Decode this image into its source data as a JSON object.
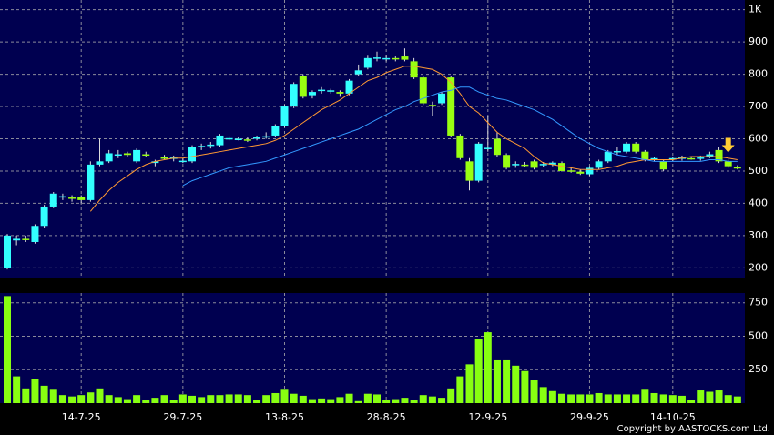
{
  "chart_data": {
    "type": "candlestick",
    "categories": [
      null,
      null,
      null,
      null,
      null,
      null,
      null,
      null,
      "14-7-25",
      null,
      null,
      null,
      null,
      null,
      null,
      null,
      null,
      null,
      null,
      "29-7-25",
      null,
      null,
      null,
      null,
      null,
      null,
      null,
      null,
      null,
      null,
      "13-8-25",
      null,
      null,
      null,
      null,
      null,
      null,
      null,
      null,
      null,
      null,
      "28-8-25",
      null,
      null,
      null,
      null,
      null,
      null,
      null,
      null,
      null,
      null,
      "12-9-25",
      null,
      null,
      null,
      null,
      null,
      null,
      null,
      null,
      null,
      null,
      "29-9-25",
      null,
      null,
      null,
      null,
      null,
      null,
      null,
      null,
      "14-10-25",
      null,
      null,
      null,
      null,
      null,
      null,
      null
    ],
    "open": [
      200,
      285,
      290,
      280,
      330,
      390,
      420,
      418,
      420,
      410,
      520,
      530,
      550,
      555,
      530,
      552,
      525,
      545,
      540,
      530,
      530,
      575,
      580,
      580,
      600,
      600,
      598,
      600,
      605,
      610,
      640,
      700,
      795,
      735,
      750,
      748,
      745,
      740,
      800,
      820,
      850,
      848,
      850,
      855,
      840,
      790,
      705,
      710,
      790,
      610,
      530,
      470,
      570,
      600,
      550,
      520,
      520,
      530,
      520,
      520,
      525,
      502,
      498,
      490,
      510,
      530,
      560,
      560,
      585,
      560,
      538,
      530,
      538,
      540,
      540,
      540,
      545,
      565,
      530,
      512
    ],
    "high": [
      305,
      300,
      300,
      335,
      395,
      435,
      430,
      425,
      425,
      530,
      600,
      565,
      565,
      560,
      570,
      560,
      535,
      550,
      548,
      540,
      580,
      585,
      590,
      615,
      608,
      605,
      605,
      610,
      620,
      645,
      705,
      775,
      800,
      750,
      760,
      755,
      750,
      785,
      830,
      860,
      870,
      860,
      855,
      880,
      850,
      795,
      715,
      745,
      795,
      615,
      540,
      590,
      670,
      620,
      555,
      530,
      528,
      535,
      528,
      530,
      530,
      510,
      505,
      515,
      535,
      565,
      575,
      590,
      590,
      565,
      545,
      535,
      545,
      548,
      545,
      548,
      560,
      575,
      535,
      518
    ],
    "low": [
      195,
      270,
      280,
      275,
      325,
      385,
      410,
      405,
      400,
      405,
      515,
      525,
      540,
      545,
      525,
      545,
      515,
      535,
      530,
      525,
      525,
      565,
      570,
      575,
      595,
      595,
      590,
      595,
      600,
      605,
      635,
      695,
      725,
      725,
      740,
      740,
      730,
      735,
      795,
      815,
      840,
      840,
      840,
      840,
      785,
      705,
      670,
      705,
      605,
      535,
      440,
      465,
      560,
      545,
      505,
      510,
      512,
      505,
      512,
      515,
      498,
      495,
      488,
      485,
      505,
      525,
      550,
      555,
      555,
      530,
      530,
      500,
      530,
      532,
      535,
      532,
      540,
      525,
      510,
      505
    ],
    "close": [
      300,
      290,
      288,
      330,
      390,
      430,
      422,
      415,
      410,
      520,
      530,
      555,
      552,
      550,
      565,
      550,
      530,
      538,
      542,
      532,
      575,
      578,
      582,
      610,
      602,
      600,
      595,
      605,
      608,
      640,
      700,
      770,
      730,
      745,
      752,
      750,
      740,
      780,
      812,
      850,
      852,
      850,
      848,
      845,
      790,
      710,
      700,
      740,
      610,
      540,
      470,
      585,
      572,
      550,
      510,
      522,
      518,
      510,
      522,
      526,
      500,
      500,
      492,
      510,
      530,
      560,
      562,
      585,
      560,
      535,
      540,
      505,
      540,
      542,
      538,
      542,
      552,
      530,
      515,
      510
    ],
    "up_color": "#33ffff",
    "down_color": "#99ff11",
    "series": [
      {
        "color": "#ff9933",
        "values": [
          null,
          null,
          null,
          null,
          null,
          null,
          null,
          null,
          null,
          375,
          410,
          440,
          465,
          485,
          505,
          520,
          530,
          535,
          540,
          540,
          545,
          550,
          555,
          560,
          565,
          570,
          575,
          580,
          585,
          595,
          610,
          630,
          650,
          670,
          690,
          705,
          720,
          740,
          760,
          780,
          790,
          805,
          815,
          825,
          825,
          820,
          815,
          800,
          775,
          740,
          700,
          680,
          650,
          620,
          600,
          585,
          570,
          545,
          525,
          520,
          515,
          510,
          505,
          505,
          505,
          510,
          515,
          525,
          530,
          535,
          535,
          535,
          535,
          540,
          545,
          545,
          545,
          545,
          540,
          535
        ]
      },
      {
        "color": "#3399ff",
        "values": [
          null,
          null,
          null,
          null,
          null,
          null,
          null,
          null,
          null,
          null,
          null,
          null,
          null,
          null,
          null,
          null,
          null,
          null,
          null,
          455,
          470,
          480,
          490,
          500,
          510,
          515,
          520,
          525,
          530,
          540,
          550,
          560,
          570,
          580,
          590,
          600,
          610,
          620,
          630,
          645,
          660,
          675,
          690,
          700,
          715,
          725,
          735,
          745,
          750,
          760,
          760,
          745,
          735,
          725,
          720,
          710,
          700,
          690,
          675,
          660,
          640,
          620,
          600,
          585,
          570,
          560,
          550,
          545,
          540,
          535,
          530,
          530,
          530,
          530,
          530,
          530,
          535,
          535,
          530,
          530
        ]
      }
    ],
    "ylim": [
      170,
      1030
    ],
    "yticks": [
      {
        "value": 1000,
        "label": "1K"
      },
      900,
      800,
      700,
      600,
      500,
      400,
      300,
      200
    ],
    "volume": {
      "color": "#88ff11",
      "values": [
        800,
        200,
        110,
        180,
        130,
        100,
        60,
        50,
        60,
        80,
        110,
        60,
        45,
        30,
        60,
        25,
        40,
        60,
        25,
        65,
        55,
        45,
        60,
        60,
        65,
        65,
        60,
        25,
        60,
        75,
        100,
        70,
        55,
        30,
        35,
        30,
        45,
        70,
        15,
        70,
        65,
        25,
        30,
        40,
        25,
        60,
        50,
        40,
        110,
        200,
        290,
        480,
        530,
        320,
        320,
        280,
        240,
        170,
        120,
        90,
        70,
        65,
        65,
        65,
        75,
        65,
        65,
        65,
        65,
        100,
        75,
        65,
        60,
        55,
        25,
        95,
        85,
        95,
        60,
        50
      ],
      "ylim": [
        0,
        823
      ],
      "yticks": [
        250,
        500,
        750
      ]
    },
    "footer": "Copyright by AASTOCKS.com Ltd."
  }
}
